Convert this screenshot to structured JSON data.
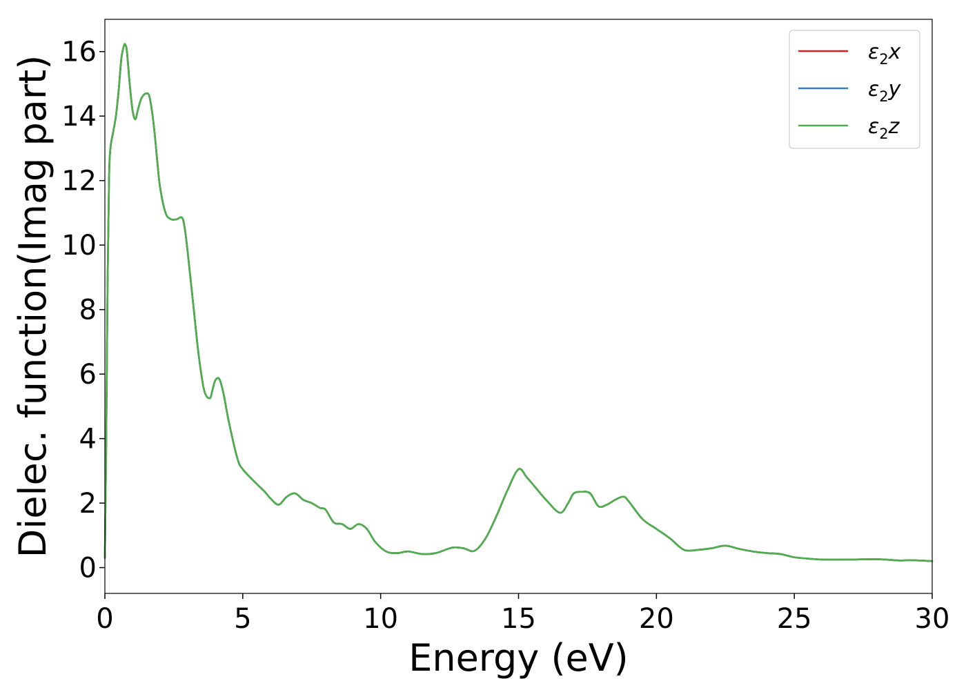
{
  "chart_data": {
    "type": "line",
    "xlabel": "Energy (eV)",
    "ylabel": "Dielec. function(Imag part)",
    "xlim": [
      0,
      30
    ],
    "ylim": [
      -0.8,
      17
    ],
    "xticks": [
      0,
      5,
      10,
      15,
      20,
      25,
      30
    ],
    "yticks": [
      0,
      2,
      4,
      6,
      8,
      10,
      12,
      14,
      16
    ],
    "grid": false,
    "legend": {
      "position": "top-right"
    },
    "series": [
      {
        "name": "ε₂x",
        "label_main": "ε",
        "label_sub": "2",
        "label_axis": "x",
        "color": "#e41a1c",
        "x": [
          0,
          0.05,
          0.1,
          0.15,
          0.2,
          0.3,
          0.4,
          0.5,
          0.6,
          0.7,
          0.75,
          0.8,
          0.9,
          1.0,
          1.1,
          1.2,
          1.3,
          1.4,
          1.5,
          1.6,
          1.7,
          1.8,
          1.9,
          2.0,
          2.2,
          2.4,
          2.6,
          2.8,
          2.9,
          3.0,
          3.2,
          3.4,
          3.6,
          3.8,
          3.9,
          4.0,
          4.15,
          4.3,
          4.5,
          4.8,
          5.0,
          5.5,
          5.8,
          6.0,
          6.3,
          6.6,
          6.9,
          7.2,
          7.5,
          7.8,
          8.0,
          8.3,
          8.6,
          8.9,
          9.2,
          9.5,
          9.8,
          10.2,
          10.6,
          11.0,
          11.5,
          12.0,
          12.6,
          13.0,
          13.4,
          13.8,
          14.2,
          14.6,
          15.0,
          15.3,
          15.6,
          16.0,
          16.5,
          16.8,
          17.0,
          17.3,
          17.6,
          17.9,
          18.2,
          18.5,
          18.8,
          19.0,
          19.5,
          20.0,
          20.5,
          21.0,
          21.5,
          22.0,
          22.5,
          23.0,
          23.5,
          24.0,
          24.5,
          25.0,
          25.5,
          26.0,
          27.0,
          28.0,
          28.8,
          29.2,
          30.0
        ],
        "y": [
          0.3,
          4.0,
          9.0,
          12.0,
          13.0,
          13.5,
          14.0,
          14.8,
          15.8,
          16.2,
          16.2,
          16.0,
          15.0,
          14.2,
          13.9,
          14.2,
          14.5,
          14.65,
          14.7,
          14.65,
          14.2,
          13.5,
          12.6,
          11.8,
          11.0,
          10.8,
          10.8,
          10.85,
          10.5,
          9.8,
          8.2,
          6.6,
          5.5,
          5.25,
          5.5,
          5.8,
          5.85,
          5.4,
          4.5,
          3.4,
          3.05,
          2.6,
          2.35,
          2.15,
          1.95,
          2.2,
          2.3,
          2.1,
          2.0,
          1.85,
          1.8,
          1.4,
          1.35,
          1.2,
          1.35,
          1.2,
          0.8,
          0.5,
          0.45,
          0.5,
          0.42,
          0.45,
          0.62,
          0.6,
          0.52,
          0.9,
          1.6,
          2.4,
          3.05,
          2.8,
          2.5,
          2.1,
          1.7,
          2.0,
          2.3,
          2.35,
          2.3,
          1.9,
          1.95,
          2.1,
          2.2,
          2.05,
          1.5,
          1.2,
          0.9,
          0.55,
          0.55,
          0.6,
          0.68,
          0.58,
          0.5,
          0.45,
          0.42,
          0.32,
          0.28,
          0.25,
          0.25,
          0.26,
          0.22,
          0.23,
          0.2
        ]
      },
      {
        "name": "ε₂y",
        "label_main": "ε",
        "label_sub": "2",
        "label_axis": "y",
        "color": "#377eb8",
        "x": [
          0,
          0.05,
          0.1,
          0.15,
          0.2,
          0.3,
          0.4,
          0.5,
          0.6,
          0.7,
          0.75,
          0.8,
          0.9,
          1.0,
          1.1,
          1.2,
          1.3,
          1.4,
          1.5,
          1.6,
          1.7,
          1.8,
          1.9,
          2.0,
          2.2,
          2.4,
          2.6,
          2.8,
          2.9,
          3.0,
          3.2,
          3.4,
          3.6,
          3.8,
          3.9,
          4.0,
          4.15,
          4.3,
          4.5,
          4.8,
          5.0,
          5.5,
          5.8,
          6.0,
          6.3,
          6.6,
          6.9,
          7.2,
          7.5,
          7.8,
          8.0,
          8.3,
          8.6,
          8.9,
          9.2,
          9.5,
          9.8,
          10.2,
          10.6,
          11.0,
          11.5,
          12.0,
          12.6,
          13.0,
          13.4,
          13.8,
          14.2,
          14.6,
          15.0,
          15.3,
          15.6,
          16.0,
          16.5,
          16.8,
          17.0,
          17.3,
          17.6,
          17.9,
          18.2,
          18.5,
          18.8,
          19.0,
          19.5,
          20.0,
          20.5,
          21.0,
          21.5,
          22.0,
          22.5,
          23.0,
          23.5,
          24.0,
          24.5,
          25.0,
          25.5,
          26.0,
          27.0,
          28.0,
          28.8,
          29.2,
          30.0
        ],
        "y": [
          0.3,
          4.0,
          9.0,
          12.0,
          13.0,
          13.5,
          14.0,
          14.8,
          15.8,
          16.2,
          16.2,
          16.0,
          15.0,
          14.2,
          13.9,
          14.2,
          14.5,
          14.65,
          14.7,
          14.65,
          14.2,
          13.5,
          12.6,
          11.8,
          11.0,
          10.8,
          10.8,
          10.85,
          10.5,
          9.8,
          8.2,
          6.6,
          5.5,
          5.25,
          5.5,
          5.8,
          5.85,
          5.4,
          4.5,
          3.4,
          3.05,
          2.6,
          2.35,
          2.15,
          1.95,
          2.2,
          2.3,
          2.1,
          2.0,
          1.85,
          1.8,
          1.4,
          1.35,
          1.2,
          1.35,
          1.2,
          0.8,
          0.5,
          0.45,
          0.5,
          0.42,
          0.45,
          0.62,
          0.6,
          0.52,
          0.9,
          1.6,
          2.4,
          3.05,
          2.8,
          2.5,
          2.1,
          1.7,
          2.0,
          2.3,
          2.35,
          2.3,
          1.9,
          1.95,
          2.1,
          2.2,
          2.05,
          1.5,
          1.2,
          0.9,
          0.55,
          0.55,
          0.6,
          0.68,
          0.58,
          0.5,
          0.45,
          0.42,
          0.32,
          0.28,
          0.25,
          0.25,
          0.26,
          0.22,
          0.23,
          0.2
        ]
      },
      {
        "name": "ε₂z",
        "label_main": "ε",
        "label_sub": "2",
        "label_axis": "z",
        "color": "#4daf4a",
        "x": [
          0,
          0.05,
          0.1,
          0.15,
          0.2,
          0.3,
          0.4,
          0.5,
          0.6,
          0.7,
          0.75,
          0.8,
          0.9,
          1.0,
          1.1,
          1.2,
          1.3,
          1.4,
          1.5,
          1.6,
          1.7,
          1.8,
          1.9,
          2.0,
          2.2,
          2.4,
          2.6,
          2.8,
          2.9,
          3.0,
          3.2,
          3.4,
          3.6,
          3.8,
          3.9,
          4.0,
          4.15,
          4.3,
          4.5,
          4.8,
          5.0,
          5.5,
          5.8,
          6.0,
          6.3,
          6.6,
          6.9,
          7.2,
          7.5,
          7.8,
          8.0,
          8.3,
          8.6,
          8.9,
          9.2,
          9.5,
          9.8,
          10.2,
          10.6,
          11.0,
          11.5,
          12.0,
          12.6,
          13.0,
          13.4,
          13.8,
          14.2,
          14.6,
          15.0,
          15.3,
          15.6,
          16.0,
          16.5,
          16.8,
          17.0,
          17.3,
          17.6,
          17.9,
          18.2,
          18.5,
          18.8,
          19.0,
          19.5,
          20.0,
          20.5,
          21.0,
          21.5,
          22.0,
          22.5,
          23.0,
          23.5,
          24.0,
          24.5,
          25.0,
          25.5,
          26.0,
          27.0,
          28.0,
          28.8,
          29.2,
          30.0
        ],
        "y": [
          0.3,
          4.0,
          9.0,
          12.0,
          13.0,
          13.5,
          14.0,
          14.8,
          15.8,
          16.2,
          16.2,
          16.0,
          15.0,
          14.2,
          13.9,
          14.2,
          14.5,
          14.65,
          14.7,
          14.65,
          14.2,
          13.5,
          12.6,
          11.8,
          11.0,
          10.8,
          10.8,
          10.85,
          10.5,
          9.8,
          8.2,
          6.6,
          5.5,
          5.25,
          5.5,
          5.8,
          5.85,
          5.4,
          4.5,
          3.4,
          3.05,
          2.6,
          2.35,
          2.15,
          1.95,
          2.2,
          2.3,
          2.1,
          2.0,
          1.85,
          1.8,
          1.4,
          1.35,
          1.2,
          1.35,
          1.2,
          0.8,
          0.5,
          0.45,
          0.5,
          0.42,
          0.45,
          0.62,
          0.6,
          0.52,
          0.9,
          1.6,
          2.4,
          3.05,
          2.8,
          2.5,
          2.1,
          1.7,
          2.0,
          2.3,
          2.35,
          2.3,
          1.9,
          1.95,
          2.1,
          2.2,
          2.05,
          1.5,
          1.2,
          0.9,
          0.55,
          0.55,
          0.6,
          0.68,
          0.58,
          0.5,
          0.45,
          0.42,
          0.32,
          0.28,
          0.25,
          0.25,
          0.26,
          0.22,
          0.23,
          0.2
        ]
      }
    ]
  }
}
